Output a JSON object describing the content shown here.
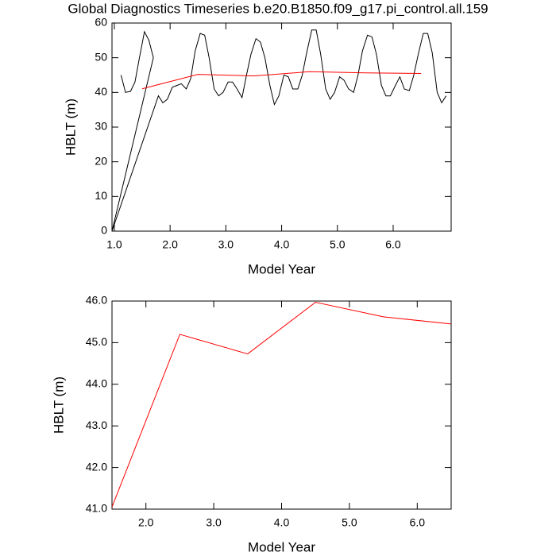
{
  "chart_data": [
    {
      "type": "line",
      "title": "Global Diagnostics Timeseries b.e20.B1850.f09_g17.pi_control.all.159",
      "x_label": "Model Year",
      "y_label": "HBLT (m)",
      "xlim": [
        0.958,
        7.04
      ],
      "ylim": [
        0,
        60
      ],
      "xticks": [
        {
          "value": 1,
          "label": "1.0"
        },
        {
          "value": 2,
          "label": "2.0"
        },
        {
          "value": 3,
          "label": "3.0"
        },
        {
          "value": 4,
          "label": "4.0"
        },
        {
          "value": 5,
          "label": "5.0"
        },
        {
          "value": 6,
          "label": "6.0"
        }
      ],
      "yticks": [
        0,
        10,
        20,
        30,
        40,
        50,
        60
      ],
      "series": [
        {
          "color": "#000000",
          "x": [
            1.12,
            1.2,
            1.29,
            1.37,
            1.45,
            1.54,
            1.62,
            1.7,
            0.958,
            1.79,
            1.87,
            1.95,
            2.04,
            2.12,
            2.2,
            2.29,
            2.37,
            2.45,
            2.54,
            2.62,
            2.7,
            2.79,
            2.87,
            2.95,
            3.04,
            3.12,
            3.2,
            3.29,
            3.37,
            3.45,
            3.54,
            3.62,
            3.7,
            3.79,
            3.87,
            3.95,
            4.04,
            4.12,
            4.2,
            4.29,
            4.37,
            4.45,
            4.54,
            4.62,
            4.7,
            4.79,
            4.87,
            4.95,
            5.04,
            5.12,
            5.2,
            5.29,
            5.37,
            5.45,
            5.54,
            5.62,
            5.7,
            5.79,
            5.87,
            5.95,
            6.04,
            6.12,
            6.2,
            6.29,
            6.37,
            6.45,
            6.54,
            6.62,
            6.7,
            6.79,
            6.87,
            6.95
          ],
          "values": [
            45,
            40,
            40.3,
            43,
            50,
            57.5,
            55,
            50,
            0,
            39,
            37,
            38,
            41.5,
            42,
            42.5,
            41,
            44,
            52,
            57,
            56.5,
            50,
            41,
            39,
            40,
            43,
            43,
            41,
            38.5,
            45,
            51,
            55.5,
            54.5,
            50,
            42,
            36.5,
            39,
            45,
            44.5,
            41,
            41,
            45,
            51.5,
            58,
            58,
            51,
            41,
            38,
            40,
            44.5,
            43.5,
            41,
            40,
            45,
            52,
            56.5,
            56,
            51,
            42,
            39,
            39,
            42,
            44.5,
            41,
            40.5,
            45,
            51,
            57,
            57,
            51.5,
            40,
            37,
            39
          ]
        },
        {
          "color": "#ff0000",
          "x": [
            1.5,
            2.5,
            3.5,
            4.5,
            5.5,
            6.5
          ],
          "values": [
            41.05,
            45.2,
            44.73,
            45.97,
            45.62,
            45.45
          ]
        }
      ]
    },
    {
      "type": "line",
      "x_label": "Model Year",
      "y_label": "HBLT (m)",
      "xlim": [
        1.5,
        6.5
      ],
      "ylim": [
        41,
        46
      ],
      "xticks": [
        {
          "value": 2,
          "label": "2.0"
        },
        {
          "value": 3,
          "label": "3.0"
        },
        {
          "value": 4,
          "label": "4.0"
        },
        {
          "value": 5,
          "label": "5.0"
        },
        {
          "value": 6,
          "label": "6.0"
        }
      ],
      "yticks": [
        {
          "value": 41,
          "label": "41.0"
        },
        {
          "value": 42,
          "label": "42.0"
        },
        {
          "value": 43,
          "label": "43.0"
        },
        {
          "value": 44,
          "label": "44.0"
        },
        {
          "value": 45,
          "label": "45.0"
        },
        {
          "value": 46,
          "label": "46.0"
        }
      ],
      "series": [
        {
          "color": "#ff0000",
          "x": [
            1.5,
            2.5,
            3.5,
            4.5,
            5.5,
            6.5
          ],
          "values": [
            41.05,
            45.2,
            44.73,
            45.97,
            45.62,
            45.45
          ]
        }
      ]
    }
  ]
}
